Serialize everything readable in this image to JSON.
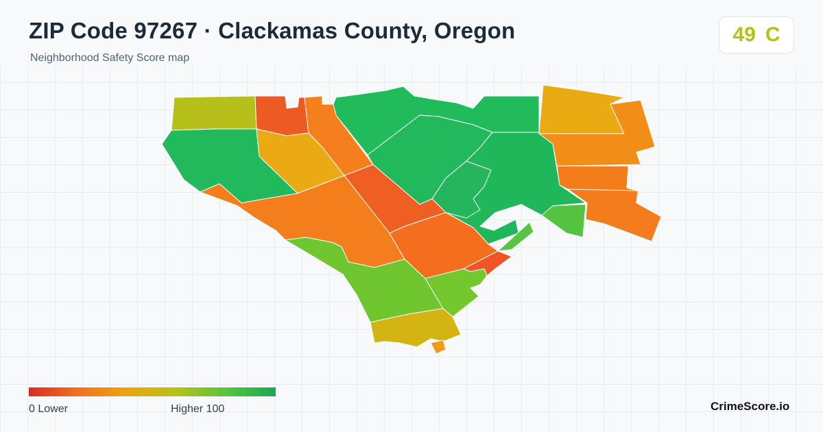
{
  "header": {
    "title": "ZIP Code 97267 · Clackamas County, Oregon",
    "subtitle": "Neighborhood Safety Score map"
  },
  "score": {
    "value": "49",
    "grade": "C",
    "color": "#b5c214"
  },
  "legend": {
    "min_label": "0  Lower",
    "max_label": "Higher  100",
    "colors": [
      "#d62f27",
      "#f2711c",
      "#eaa611",
      "#b5c214",
      "#57c43c",
      "#1aa957"
    ]
  },
  "brand": {
    "name": "CrimeScore.io"
  },
  "map": {
    "regions": [
      {
        "id": "nw-block",
        "color": "#b7c01a"
      },
      {
        "id": "n-red-block",
        "color": "#ee5a24"
      },
      {
        "id": "n-strip",
        "color": "#f47f1c"
      },
      {
        "id": "west-green",
        "color": "#22b95c"
      },
      {
        "id": "yellow-mid",
        "color": "#eba913"
      },
      {
        "id": "ne-green-top",
        "color": "#21bb5b"
      },
      {
        "id": "green-center",
        "color": "#22b95c"
      },
      {
        "id": "green-east",
        "color": "#20b65a"
      },
      {
        "id": "green-south-center",
        "color": "#24b55d"
      },
      {
        "id": "ne-yellow",
        "color": "#eaaa11"
      },
      {
        "id": "e-orange-1",
        "color": "#f28e17"
      },
      {
        "id": "e-orange-2",
        "color": "#f47d1a"
      },
      {
        "id": "e-orange-3",
        "color": "#f57c1c"
      },
      {
        "id": "e-lime",
        "color": "#54c340"
      },
      {
        "id": "center-orange-wide",
        "color": "#f47e1b"
      },
      {
        "id": "center-red",
        "color": "#ef5e22"
      },
      {
        "id": "se-orange",
        "color": "#f46e1e"
      },
      {
        "id": "red-small",
        "color": "#ef5525"
      },
      {
        "id": "lime-small",
        "color": "#59c441"
      },
      {
        "id": "sw-lime",
        "color": "#6fc62f"
      },
      {
        "id": "s-lime",
        "color": "#74c72c"
      },
      {
        "id": "s-yellow",
        "color": "#d4b412"
      },
      {
        "id": "s-orange-bottom",
        "color": "#f19a16"
      },
      {
        "id": "s-tip",
        "color": "#f3751e"
      }
    ]
  }
}
